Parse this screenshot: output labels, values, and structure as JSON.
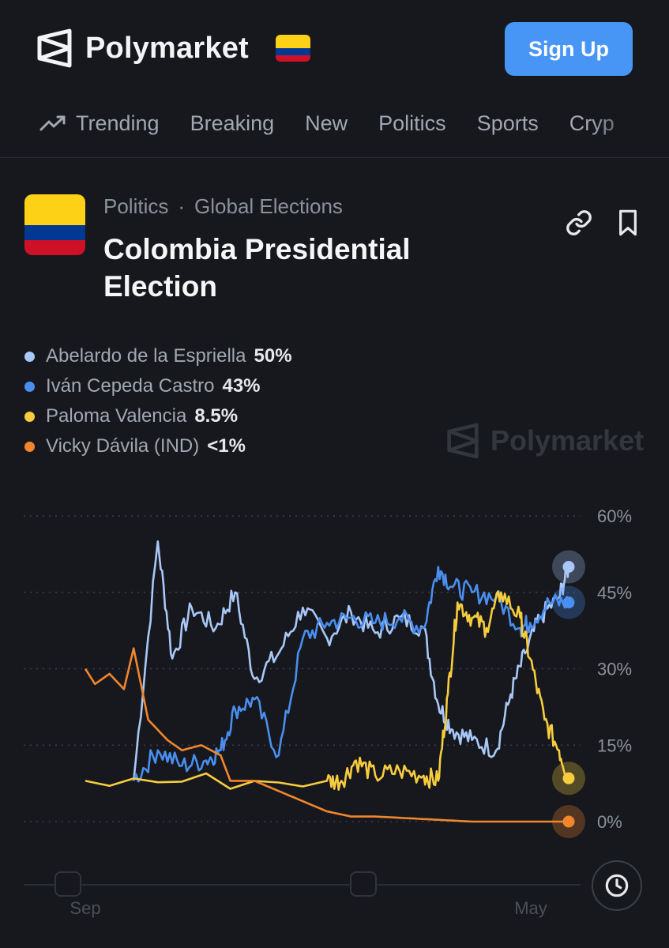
{
  "header": {
    "brand": "Polymarket",
    "signup_label": "Sign Up"
  },
  "nav": [
    {
      "label": "Trending",
      "icon": "trending-up-icon"
    },
    {
      "label": "Breaking"
    },
    {
      "label": "New"
    },
    {
      "label": "Politics"
    },
    {
      "label": "Sports"
    },
    {
      "label": "Cryp"
    }
  ],
  "market": {
    "category": "Politics",
    "subcategory": "Global Elections",
    "title": "Colombia Presidential Election",
    "flag_colors": [
      "#fcd116",
      "#003893",
      "#ce1126"
    ]
  },
  "watermark": "Polymarket",
  "legend": [
    {
      "name": "Abelardo de la Espriella",
      "value": "50%",
      "color": "#a9c7f7"
    },
    {
      "name": "Iván Cepeda Castro",
      "value": "43%",
      "color": "#4a8ef0"
    },
    {
      "name": "Paloma Valencia",
      "value": "8.5%",
      "color": "#f7cc3e"
    },
    {
      "name": "Vicky Dávila (IND)",
      "value": "<1%",
      "color": "#f2862e"
    }
  ],
  "chart_data": {
    "type": "line",
    "y_ticks": [
      "60%",
      "45%",
      "30%",
      "15%",
      "0%"
    ],
    "x_ticks": [
      "Sep",
      "May"
    ],
    "ylim": [
      0,
      60
    ],
    "grid": true,
    "series": [
      {
        "name": "Abelardo de la Espriella",
        "color": "#a9c7f7",
        "values": [
          [
            0.1,
            8
          ],
          [
            0.15,
            55
          ],
          [
            0.18,
            32
          ],
          [
            0.22,
            42
          ],
          [
            0.27,
            38
          ],
          [
            0.31,
            45
          ],
          [
            0.35,
            28
          ],
          [
            0.4,
            33
          ],
          [
            0.45,
            42
          ],
          [
            0.5,
            36
          ],
          [
            0.55,
            41
          ],
          [
            0.6,
            37
          ],
          [
            0.65,
            40
          ],
          [
            0.7,
            38
          ],
          [
            0.73,
            23
          ],
          [
            0.76,
            18
          ],
          [
            0.8,
            16
          ],
          [
            0.85,
            14
          ],
          [
            0.88,
            25
          ],
          [
            0.91,
            33
          ],
          [
            0.94,
            40
          ],
          [
            0.98,
            44
          ],
          [
            1.0,
            50
          ]
        ]
      },
      {
        "name": "Iván Cepeda Castro",
        "color": "#4a8ef0",
        "values": [
          [
            0.1,
            8
          ],
          [
            0.15,
            14
          ],
          [
            0.2,
            11
          ],
          [
            0.25,
            12
          ],
          [
            0.28,
            14
          ],
          [
            0.31,
            22
          ],
          [
            0.35,
            24
          ],
          [
            0.4,
            13
          ],
          [
            0.45,
            36
          ],
          [
            0.5,
            39
          ],
          [
            0.55,
            40
          ],
          [
            0.6,
            39
          ],
          [
            0.65,
            40
          ],
          [
            0.7,
            38
          ],
          [
            0.73,
            50
          ],
          [
            0.76,
            46
          ],
          [
            0.8,
            45
          ],
          [
            0.85,
            44
          ],
          [
            0.9,
            38
          ],
          [
            0.92,
            39
          ],
          [
            0.96,
            43
          ],
          [
            1.0,
            43
          ]
        ]
      },
      {
        "name": "Paloma Valencia",
        "color": "#f7cc3e",
        "values": [
          [
            0,
            8
          ],
          [
            0.5,
            8
          ],
          [
            0.53,
            8
          ],
          [
            0.56,
            12
          ],
          [
            0.6,
            9
          ],
          [
            0.65,
            10
          ],
          [
            0.7,
            9
          ],
          [
            0.73,
            8
          ],
          [
            0.75,
            25
          ],
          [
            0.77,
            43
          ],
          [
            0.8,
            40
          ],
          [
            0.83,
            38
          ],
          [
            0.86,
            45
          ],
          [
            0.9,
            40
          ],
          [
            0.92,
            32
          ],
          [
            0.95,
            20
          ],
          [
            0.98,
            14
          ],
          [
            1.0,
            8.5
          ]
        ]
      },
      {
        "name": "Vicky Dávila (IND)",
        "color": "#f2862e",
        "values": [
          [
            0,
            30
          ],
          [
            0.02,
            27
          ],
          [
            0.05,
            29
          ],
          [
            0.08,
            26
          ],
          [
            0.1,
            34
          ],
          [
            0.13,
            20
          ],
          [
            0.17,
            16
          ],
          [
            0.2,
            14
          ],
          [
            0.24,
            15
          ],
          [
            0.28,
            13
          ],
          [
            0.3,
            8
          ],
          [
            0.35,
            8
          ],
          [
            0.4,
            6
          ],
          [
            0.45,
            4
          ],
          [
            0.5,
            2
          ],
          [
            0.55,
            1
          ],
          [
            0.6,
            1
          ],
          [
            0.7,
            0.5
          ],
          [
            0.8,
            0
          ],
          [
            1.0,
            0
          ]
        ]
      }
    ]
  }
}
